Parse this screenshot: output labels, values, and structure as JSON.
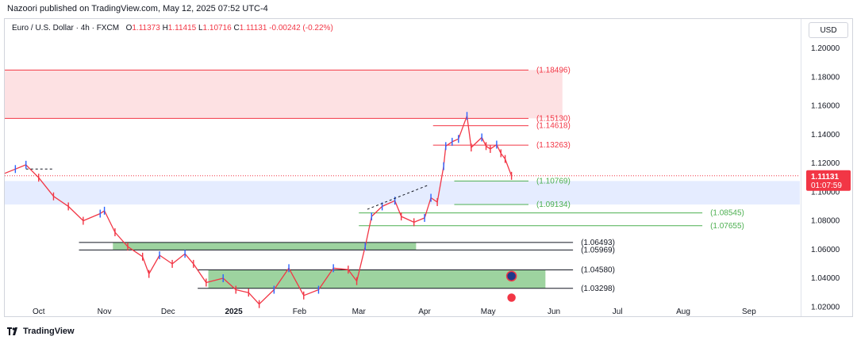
{
  "publisher_line": "Nazoori published on TradingView.com, May 12, 2025 07:52 UTC-4",
  "symbol_line": "Euro / U.S. Dollar · 4h · FXCM",
  "ohlc": {
    "o_label": "O",
    "o": "1.11373",
    "h_label": "H",
    "h": "1.11415",
    "l_label": "L",
    "l": "1.10716",
    "c_label": "C",
    "c": "1.11131",
    "change": "-0.00242 (-0.22%)"
  },
  "currency_button": "USD",
  "footer_brand": "TradingView",
  "colors": {
    "up": "#2962ff",
    "down": "#f23645",
    "support_green": "#4caf50",
    "resistance_red": "#f23645",
    "zone_red": "rgba(242,54,69,0.15)",
    "zone_blue": "rgba(41,98,255,0.12)",
    "zone_green": "rgba(76,175,80,0.55)"
  },
  "chart_data": {
    "type": "line",
    "title": "Euro / U.S. Dollar · 4h · FXCM",
    "y_scale": "linear",
    "ylim": [
      1.0185,
      1.205
    ],
    "y_ticks": [
      "1.20000",
      "1.18000",
      "1.16000",
      "1.14000",
      "1.12000",
      "1.10000",
      "1.08000",
      "1.06000",
      "1.04000",
      "1.02000"
    ],
    "y_tick_values": [
      1.2,
      1.18,
      1.16,
      1.14,
      1.12,
      1.1,
      1.08,
      1.06,
      1.04,
      1.02
    ],
    "x_tick_labels": [
      "Oct",
      "Nov",
      "Dec",
      "2025",
      "Feb",
      "Mar",
      "Apr",
      "May",
      "Jun",
      "Jul",
      "Aug",
      "Sep"
    ],
    "x_tick_dates": [
      "2024-10-01",
      "2024-11-01",
      "2024-12-01",
      "2025-01-01",
      "2025-02-01",
      "2025-03-01",
      "2025-04-01",
      "2025-05-01",
      "2025-06-01",
      "2025-07-01",
      "2025-08-01",
      "2025-09-01"
    ],
    "xlim": [
      "2024-09-15",
      "2025-09-25"
    ],
    "series": [
      {
        "points": [
          [
            "2024-09-15",
            1.113
          ],
          [
            "2024-09-20",
            1.116
          ],
          [
            "2024-09-25",
            1.119
          ],
          [
            "2024-10-01",
            1.11
          ],
          [
            "2024-10-08",
            1.097
          ],
          [
            "2024-10-15",
            1.09
          ],
          [
            "2024-10-22",
            1.08
          ],
          [
            "2024-10-30",
            1.085
          ],
          [
            "2024-11-01",
            1.087
          ],
          [
            "2024-11-06",
            1.072
          ],
          [
            "2024-11-12",
            1.062
          ],
          [
            "2024-11-19",
            1.055
          ],
          [
            "2024-11-22",
            1.043
          ],
          [
            "2024-11-27",
            1.056
          ],
          [
            "2024-12-03",
            1.05
          ],
          [
            "2024-12-09",
            1.057
          ],
          [
            "2024-12-13",
            1.05
          ],
          [
            "2024-12-19",
            1.037
          ],
          [
            "2024-12-27",
            1.04
          ],
          [
            "2025-01-02",
            1.032
          ],
          [
            "2025-01-08",
            1.03
          ],
          [
            "2025-01-13",
            1.022
          ],
          [
            "2025-01-20",
            1.032
          ],
          [
            "2025-01-27",
            1.047
          ],
          [
            "2025-02-03",
            1.028
          ],
          [
            "2025-02-10",
            1.032
          ],
          [
            "2025-02-17",
            1.047
          ],
          [
            "2025-02-24",
            1.046
          ],
          [
            "2025-02-28",
            1.038
          ],
          [
            "2025-03-04",
            1.062
          ],
          [
            "2025-03-07",
            1.083
          ],
          [
            "2025-03-12",
            1.09
          ],
          [
            "2025-03-18",
            1.094
          ],
          [
            "2025-03-21",
            1.083
          ],
          [
            "2025-03-27",
            1.079
          ],
          [
            "2025-04-01",
            1.082
          ],
          [
            "2025-04-04",
            1.096
          ],
          [
            "2025-04-07",
            1.093
          ],
          [
            "2025-04-10",
            1.118
          ],
          [
            "2025-04-11",
            1.132
          ],
          [
            "2025-04-14",
            1.135
          ],
          [
            "2025-04-17",
            1.137
          ],
          [
            "2025-04-21",
            1.153
          ],
          [
            "2025-04-23",
            1.131
          ],
          [
            "2025-04-28",
            1.138
          ],
          [
            "2025-04-30",
            1.132
          ],
          [
            "2025-05-02",
            1.13
          ],
          [
            "2025-05-05",
            1.133
          ],
          [
            "2025-05-07",
            1.127
          ],
          [
            "2025-05-09",
            1.123
          ],
          [
            "2025-05-12",
            1.1113
          ]
        ]
      }
    ],
    "current_price": "1.11131",
    "countdown": "01:07:59",
    "levels": [
      {
        "label": "(1.18496)",
        "value": 1.18496,
        "color": "red",
        "start": "2024-09-15",
        "end": "2025-05-20"
      },
      {
        "label": "(1.15130)",
        "value": 1.1513,
        "color": "red",
        "start": "2024-09-15",
        "end": "2025-05-20"
      },
      {
        "label": "(1.14618)",
        "value": 1.14618,
        "color": "red",
        "start": "2025-04-05",
        "end": "2025-05-20"
      },
      {
        "label": "(1.13263)",
        "value": 1.13263,
        "color": "red",
        "start": "2025-04-05",
        "end": "2025-05-20"
      },
      {
        "label": "(1.10769)",
        "value": 1.10769,
        "color": "green",
        "start": "2025-04-15",
        "end": "2025-05-20"
      },
      {
        "label": "(1.09134)",
        "value": 1.09134,
        "color": "green",
        "start": "2025-04-15",
        "end": "2025-05-20"
      },
      {
        "label": "(1.08545)",
        "value": 1.08545,
        "color": "green",
        "start": "2025-03-01",
        "end": "2025-08-10"
      },
      {
        "label": "(1.07655)",
        "value": 1.07655,
        "color": "green",
        "start": "2025-03-01",
        "end": "2025-08-10"
      },
      {
        "label": "(1.06493)",
        "value": 1.06493,
        "color": "black",
        "start": "2024-10-20",
        "end": "2025-06-10"
      },
      {
        "label": "(1.05969)",
        "value": 1.05969,
        "color": "black",
        "start": "2024-10-20",
        "end": "2025-06-10"
      },
      {
        "label": "(1.04580)",
        "value": 1.0458,
        "color": "black",
        "start": "2024-12-15",
        "end": "2025-06-10"
      },
      {
        "label": "(1.03298)",
        "value": 1.03298,
        "color": "black",
        "start": "2024-12-15",
        "end": "2025-06-10"
      }
    ],
    "zones": [
      {
        "name": "red-zone",
        "y1": 1.1513,
        "y2": 1.18496,
        "start": "2024-09-15",
        "end": "2025-06-05",
        "color": "zone_red"
      },
      {
        "name": "blue-zone",
        "y1": 1.09134,
        "y2": 1.10769,
        "start": "2024-09-15",
        "end": "2025-09-25",
        "color": "zone_blue"
      },
      {
        "name": "green-zone-upper",
        "y1": 1.05969,
        "y2": 1.06493,
        "start": "2024-11-05",
        "end": "2025-03-28",
        "color": "zone_green"
      },
      {
        "name": "green-zone-lower",
        "y1": 1.03298,
        "y2": 1.0458,
        "start": "2024-12-20",
        "end": "2025-05-28",
        "color": "zone_green"
      }
    ],
    "grid": false
  }
}
